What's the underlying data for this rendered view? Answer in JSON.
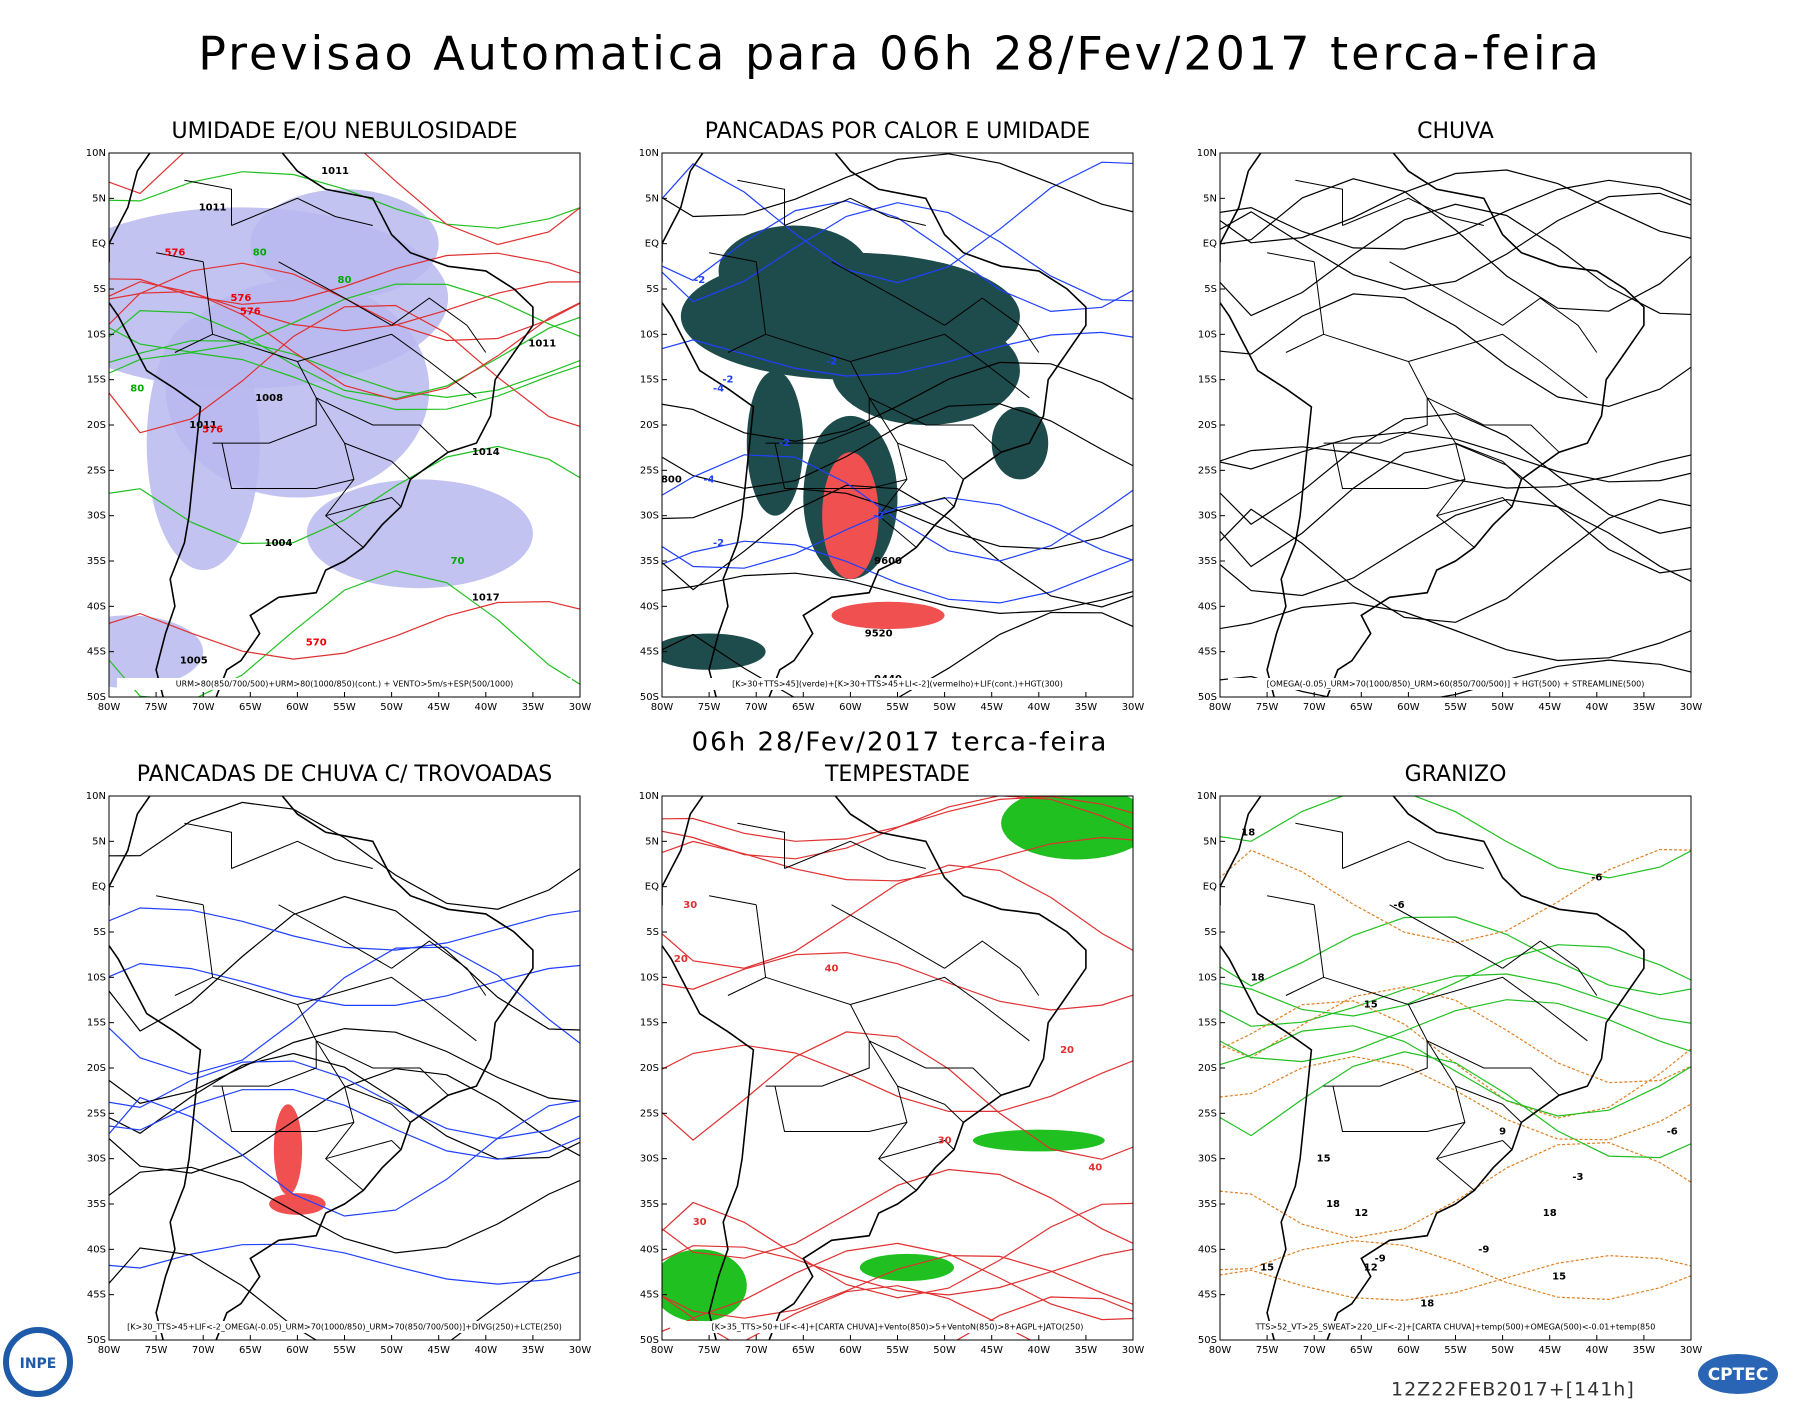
{
  "header": {
    "title": "Previsao Automatica  para 06h 28/Fev/2017 terca-feira",
    "subtitle": "06h 28/Fev/2017 terca-feira"
  },
  "axes": {
    "lat_labels": [
      "10N",
      "5N",
      "EQ",
      "5S",
      "10S",
      "15S",
      "20S",
      "25S",
      "30S",
      "35S",
      "40S",
      "45S",
      "50S"
    ],
    "lon_labels": [
      "80W",
      "75W",
      "70W",
      "65W",
      "60W",
      "55W",
      "50W",
      "45W",
      "40W",
      "35W",
      "30W"
    ]
  },
  "panels": [
    {
      "title": "UMIDADE E/OU NEBULOSIDADE",
      "caption": "URM>80(850/700/500)+URM>80(1000/850)(cont.) + VENTO>5m/s+ESP(500/1000)",
      "labels": [
        "1011",
        "1011",
        "576",
        "576",
        "576",
        "1008",
        "1011",
        "576",
        "1011",
        "1014",
        "1004",
        "1017",
        "570",
        "1005",
        "80",
        "80",
        "80",
        "70"
      ]
    },
    {
      "title": "PANCADAS POR CALOR E UMIDADE",
      "caption": "[K>30+TTS>45](verde)+[K>30+TTS>45+LI<-2](vermelho)+LIF(cont.)+HGT(300)",
      "labels": [
        "-2",
        "-2",
        "-4",
        "-2",
        "-2",
        "-4",
        "-2",
        "9600",
        "9520",
        "9440",
        "800",
        "-2"
      ]
    },
    {
      "title": "CHUVA",
      "caption": "[OMEGA(-0.05)_URM>70(1000/850)_URM>60(850/700/500)] + HGT(500) + STREAMLINE(500)",
      "labels": []
    },
    {
      "title": "PANCADAS DE CHUVA C/ TROVOADAS",
      "caption": "[K>30_TTS>45+LIF<-2_OMEGA(-0.05)_URM>70(1000/850)_URM>70(850/700/500)]+DIVG(250)+LCTE(250)",
      "labels": []
    },
    {
      "title": "TEMPESTADE",
      "caption": "[K>35_TTS>50+LIF<-4]+[CARTA CHUVA]+Vento(850)>5+VentoN(850)>8+AGPL+JATO(250)",
      "labels": [
        "30",
        "20",
        "40",
        "30",
        "20",
        "40",
        "30"
      ]
    },
    {
      "title": "GRANIZO",
      "caption": "TTS>52_VT>25_SWEAT>220_LIF<-2]+[CARTA CHUVA]+temp(500)+OMEGA(500)<-0.01+temp(850",
      "labels": [
        "18",
        "15",
        "18",
        "-6",
        "-6",
        "-9",
        "18",
        "15",
        "12",
        "-9",
        "12",
        "15",
        "18",
        "-3",
        "-6",
        "9",
        "15",
        "18"
      ]
    }
  ],
  "footer": {
    "run": "12Z22FEB2017+[141h]",
    "logo_left": "INPE",
    "logo_right": "CPTEC"
  }
}
